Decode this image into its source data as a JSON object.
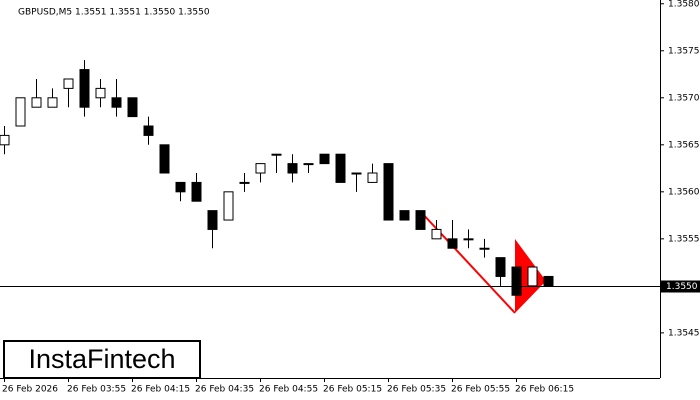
{
  "chart_data": {
    "type": "candlestick",
    "title": "GBPUSD,M5  1.3551 1.3551 1.3550 1.3550",
    "categories": [
      "26 Feb 2026",
      null,
      null,
      null,
      "26 Feb 03:55",
      null,
      null,
      null,
      "26 Feb 04:15",
      null,
      null,
      null,
      "26 Feb 04:35",
      null,
      null,
      null,
      "26 Feb 04:55",
      null,
      null,
      null,
      "26 Feb 05:15",
      null,
      null,
      null,
      "26 Feb 05:35",
      null,
      null,
      null,
      "26 Feb 05:55",
      null,
      null,
      null,
      "26 Feb 06:15",
      null,
      null
    ],
    "open": [
      1.3565,
      1.3567,
      1.3569,
      1.3569,
      1.3571,
      1.3573,
      1.357,
      1.357,
      1.357,
      1.3567,
      1.3565,
      1.3561,
      1.3561,
      1.3558,
      1.3557,
      1.3561,
      1.3562,
      1.3564,
      1.3563,
      1.3563,
      1.3564,
      1.3564,
      1.3562,
      1.3561,
      1.3563,
      1.3558,
      1.3558,
      1.3555,
      1.3555,
      1.3555,
      1.3554,
      1.3553,
      1.3552,
      1.355,
      1.3551
    ],
    "high": [
      1.3567,
      1.357,
      1.3572,
      1.3571,
      1.3572,
      1.3574,
      1.3572,
      1.3572,
      1.357,
      1.3568,
      1.3565,
      1.3561,
      1.3562,
      1.3558,
      1.356,
      1.3562,
      1.3563,
      1.3564,
      1.3564,
      1.3563,
      1.3564,
      1.3564,
      1.3562,
      1.3563,
      1.3563,
      1.3558,
      1.3558,
      1.3557,
      1.3557,
      1.3556,
      1.3555,
      1.3553,
      1.3552,
      1.3552,
      1.3551
    ],
    "low": [
      1.3564,
      1.3567,
      1.3569,
      1.3569,
      1.3569,
      1.3568,
      1.3569,
      1.3568,
      1.3568,
      1.3565,
      1.3562,
      1.3559,
      1.3559,
      1.3554,
      1.3557,
      1.356,
      1.3561,
      1.3562,
      1.3561,
      1.3562,
      1.3563,
      1.3561,
      1.356,
      1.3561,
      1.3557,
      1.3557,
      1.3556,
      1.3555,
      1.3554,
      1.3554,
      1.3553,
      1.355,
      1.3549,
      1.355,
      1.355
    ],
    "close": [
      1.3566,
      1.357,
      1.357,
      1.357,
      1.3572,
      1.3569,
      1.3571,
      1.3569,
      1.3568,
      1.3566,
      1.3562,
      1.356,
      1.3559,
      1.3556,
      1.356,
      1.3561,
      1.3563,
      1.3564,
      1.3562,
      1.3563,
      1.3563,
      1.3561,
      1.3562,
      1.3562,
      1.3557,
      1.3557,
      1.3556,
      1.3556,
      1.3554,
      1.3555,
      1.3554,
      1.3551,
      1.3549,
      1.3552,
      1.355
    ],
    "ylim": [
      1.35402,
      1.35804
    ],
    "yticks": [
      {
        "value": 1.358,
        "label": "1.3580"
      },
      {
        "value": 1.3575,
        "label": "1.3575"
      },
      {
        "value": 1.357,
        "label": "1.3570"
      },
      {
        "value": 1.3565,
        "label": "1.3565"
      },
      {
        "value": 1.356,
        "label": "1.3560"
      },
      {
        "value": 1.3555,
        "label": "1.3555"
      },
      {
        "value": 1.3545,
        "label": "1.3545"
      }
    ],
    "current_price": {
      "value": 1.355,
      "label": "1.3550"
    },
    "watermark": "InstaFintech"
  }
}
